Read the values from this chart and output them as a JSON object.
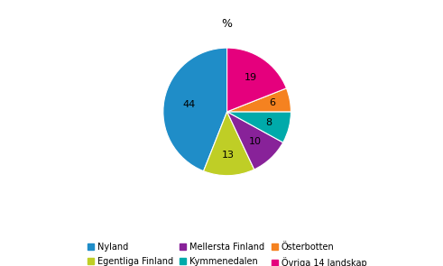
{
  "title": "%",
  "plot_values": [
    44,
    13,
    10,
    8,
    6,
    19
  ],
  "plot_colors": [
    "#1F8DC8",
    "#BFCE26",
    "#882299",
    "#00AAAA",
    "#F58220",
    "#E5007D"
  ],
  "plot_labels": [
    "Nyland",
    "Egentliga Finland",
    "Mellersta Finland",
    "Kymmenedalen",
    "Österbotten",
    "Övriga 14 landskap"
  ],
  "legend_order": [
    [
      "Nyland",
      "#1F8DC8"
    ],
    [
      "Egentliga Finland",
      "#BFCE26"
    ],
    [
      "Mellersta Finland",
      "#882299"
    ],
    [
      "Kymmenedalen",
      "#00AAAA"
    ],
    [
      "Österbotten",
      "#F58220"
    ],
    [
      "Övriga 14 landskap",
      "#E5007D"
    ]
  ],
  "startangle": 90,
  "counterclock": true,
  "label_radii": [
    0.6,
    0.68,
    0.65,
    0.68,
    0.72,
    0.65
  ]
}
